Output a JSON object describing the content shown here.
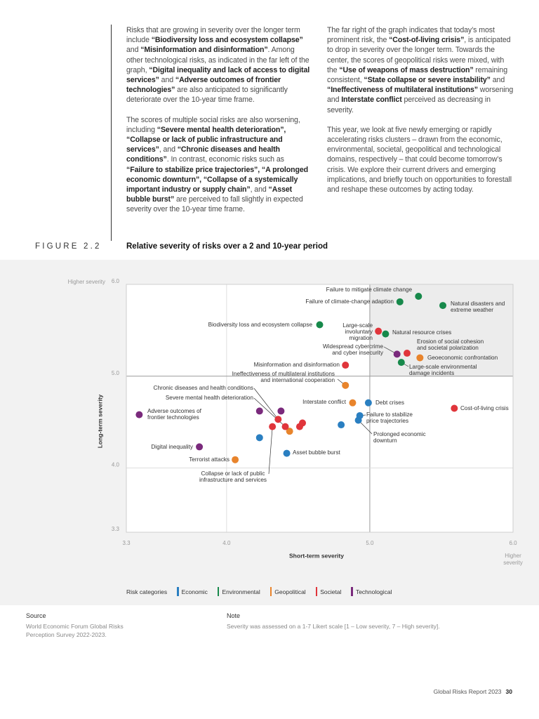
{
  "columns": [
    {
      "paragraphs": [
        {
          "runs": [
            {
              "text": "Risks that are growing in severity over the longer term include ",
              "bold": false
            },
            {
              "text": "“Biodiversity loss and ecosystem collapse”",
              "bold": true
            },
            {
              "text": " and ",
              "bold": false
            },
            {
              "text": "“Misinformation and disinformation”",
              "bold": true
            },
            {
              "text": ". Among other technological risks, as indicated in the far left of the graph, ",
              "bold": false
            },
            {
              "text": "“Digital inequality and lack of access to digital services”",
              "bold": true
            },
            {
              "text": " and ",
              "bold": false
            },
            {
              "text": "“Adverse outcomes of frontier technologies”",
              "bold": true
            },
            {
              "text": " are also anticipated to significantly deteriorate over the 10-year time frame.",
              "bold": false
            }
          ]
        },
        {
          "runs": [
            {
              "text": "The scores of multiple social risks are also worsening, including ",
              "bold": false
            },
            {
              "text": "“Severe mental health deterioration”, “Collapse or lack of public infrastructure and services”",
              "bold": true
            },
            {
              "text": ", and ",
              "bold": false
            },
            {
              "text": "“Chronic diseases and health conditions”",
              "bold": true
            },
            {
              "text": ". In contrast, economic risks such as ",
              "bold": false
            },
            {
              "text": "“Failure to stabilize price trajectories”, “A prolonged economic downturn”, “Collapse of a systemically important industry or supply chain”",
              "bold": true
            },
            {
              "text": ", and ",
              "bold": false
            },
            {
              "text": "“Asset bubble burst”",
              "bold": true
            },
            {
              "text": " are perceived to fall slightly in expected severity over the 10-year time frame.",
              "bold": false
            }
          ]
        }
      ]
    },
    {
      "paragraphs": [
        {
          "runs": [
            {
              "text": "The far right of the graph indicates that today’s most prominent risk, the ",
              "bold": false
            },
            {
              "text": "“Cost-of-living crisis”",
              "bold": true
            },
            {
              "text": ", is anticipated to drop in severity over the longer term. Towards the center, the scores of geopolitical risks were mixed, with the ",
              "bold": false
            },
            {
              "text": "“Use of weapons of mass destruction”",
              "bold": true
            },
            {
              "text": " remaining consistent, ",
              "bold": false
            },
            {
              "text": "“State collapse or severe instability”",
              "bold": true
            },
            {
              "text": " and ",
              "bold": false
            },
            {
              "text": "“Ineffectiveness of multilateral institutions”",
              "bold": true
            },
            {
              "text": " worsening and ",
              "bold": false
            },
            {
              "text": "Interstate conflict",
              "bold": true
            },
            {
              "text": " perceived as decreasing in severity.",
              "bold": false
            }
          ]
        },
        {
          "runs": [
            {
              "text": "This year, we look at five newly emerging or rapidly accelerating risks clusters – drawn from the economic, environmental, societal, geopolitical and technological domains, respectively – that could become tomorrow’s crisis. We explore their current drivers and emerging implications, and briefly touch on opportunities to forestall and reshape these outcomes by acting today.",
              "bold": false
            }
          ]
        }
      ]
    }
  ],
  "chart_data": {
    "type": "scatter",
    "figure_label": "FIGURE 2.2",
    "title": "Relative severity of risks over a 2 and 10-year period",
    "x_label": "Short-term severity",
    "y_label": "Long-term severity",
    "x_axis_note": "Higher severity",
    "y_axis_note": "Higher severity",
    "legend_title": "Risk categories",
    "xlim": [
      3.3,
      6.0
    ],
    "ylim": [
      3.3,
      6.0
    ],
    "xticks": [
      3.3,
      {
        "value": 4.0,
        "label": "4.0"
      },
      {
        "value": 5.0,
        "label": "5.0"
      },
      {
        "value": 6.0,
        "label": "6.0"
      }
    ],
    "yticks": [
      3.3,
      {
        "value": 4.0,
        "label": "4.0"
      },
      {
        "value": 5.0,
        "label": "5.0"
      },
      {
        "value": 6.0,
        "label": "6.0"
      }
    ],
    "grid": true,
    "series": [
      {
        "name": "Economic",
        "color": "#2a7fc1",
        "labels": [
          "Debt crises",
          "Failure to stabilize price trajectories",
          "Prolonged economic downturn",
          "Asset bubble burst",
          null,
          null
        ],
        "x": [
          4.99,
          4.93,
          4.92,
          4.42,
          4.8,
          4.23
        ],
        "values": [
          4.71,
          4.57,
          4.52,
          4.16,
          4.47,
          4.33
        ]
      },
      {
        "name": "Environmental",
        "color": "#17894b",
        "labels": [
          "Failure to mitigate climate change",
          "Natural disasters and extreme weather",
          "Failure of climate-change adaption",
          "Biodiversity loss and ecosystem collapse",
          "Natural resource crises",
          "Large-scale environmental damage incidents"
        ],
        "x": [
          5.34,
          5.51,
          5.21,
          4.65,
          5.11,
          5.22
        ],
        "values": [
          5.87,
          5.77,
          5.81,
          5.56,
          5.46,
          5.15
        ]
      },
      {
        "name": "Geopolitical",
        "color": "#e8842c",
        "labels": [
          "Geoeconomic confrontation",
          "Ineffectiveness of multilateral institutions and international cooperation",
          "Interstate conflict",
          "Terrorist attacks",
          null
        ],
        "x": [
          5.35,
          4.83,
          4.88,
          4.06,
          4.44
        ],
        "values": [
          5.2,
          4.9,
          4.71,
          4.09,
          4.4
        ]
      },
      {
        "name": "Societal",
        "color": "#e0353b",
        "labels": [
          "Large-scale involuntary migration",
          "Erosion of social cohesion and societal polarization",
          "Misinformation and disinformation",
          "Cost-of-living crisis",
          "Chronic diseases and health conditions",
          "Severe mental health deterioration",
          "Collapse or lack of public infrastructure and services",
          null,
          null
        ],
        "x": [
          5.06,
          5.26,
          4.83,
          5.59,
          4.36,
          4.41,
          4.32,
          4.51,
          4.53
        ],
        "values": [
          5.49,
          5.25,
          5.12,
          4.65,
          4.53,
          4.45,
          4.45,
          4.45,
          4.49
        ]
      },
      {
        "name": "Technological",
        "color": "#7a2a7c",
        "labels": [
          "Widespread cybercrime and cyber insecurity",
          "Adverse outcomes of frontier technologies",
          "Digital inequality",
          null,
          null
        ],
        "x": [
          5.19,
          3.39,
          3.81,
          4.23,
          4.38
        ],
        "values": [
          5.24,
          4.58,
          4.23,
          4.62,
          4.62
        ]
      }
    ]
  },
  "source": {
    "title": "Source",
    "text": "World Economic Forum Global Risks Perception Survey 2022-2023."
  },
  "note": {
    "title": "Note",
    "text": "Severity was assessed on a 1-7 Likert scale [1 – Low severity, 7 – High severity]."
  },
  "footer": {
    "report": "Global Risks Report 2023",
    "page": 30
  }
}
